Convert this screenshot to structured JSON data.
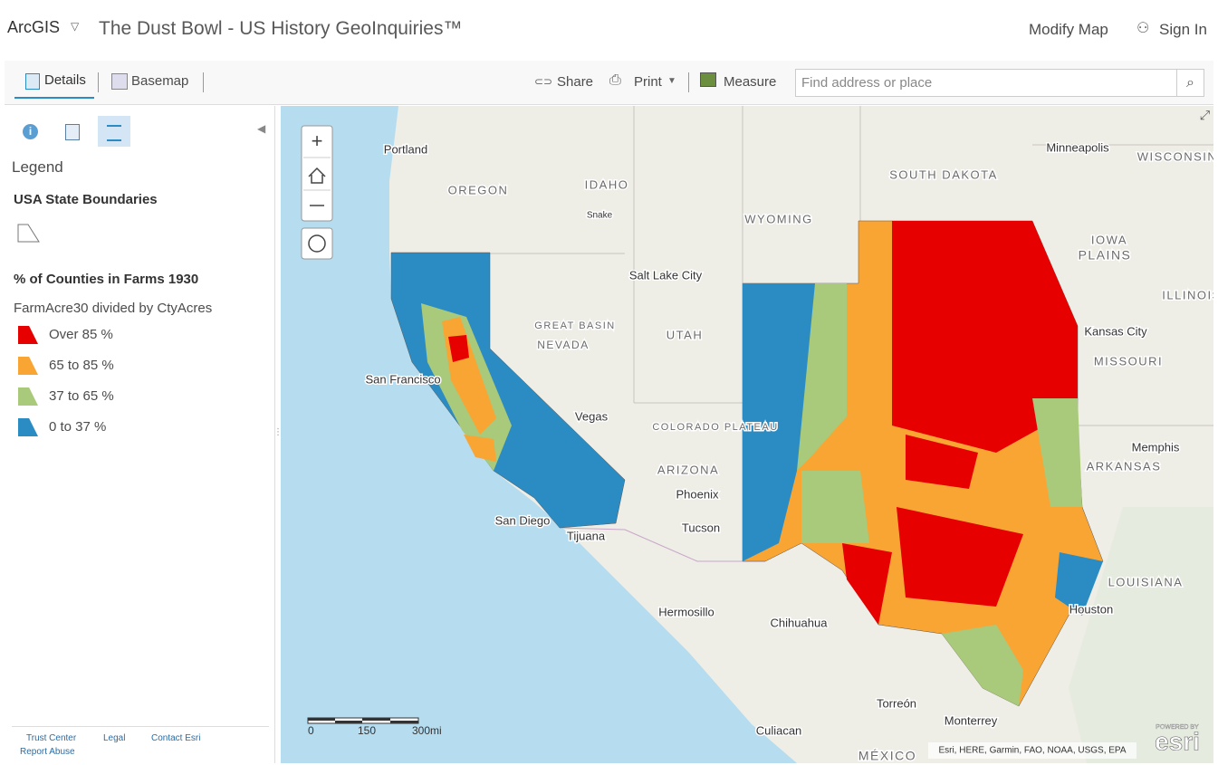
{
  "header": {
    "brand": "ArcGIS",
    "title": "The Dust Bowl - US History GeoInquiries™",
    "modify": "Modify Map",
    "sign_in": "Sign In"
  },
  "toolbar": {
    "details": "Details",
    "basemap": "Basemap",
    "share": "Share",
    "print": "Print",
    "measure": "Measure",
    "search_placeholder": "Find address or place"
  },
  "sidebar": {
    "legend_title": "Legend",
    "layers": [
      {
        "title": "USA State Boundaries"
      },
      {
        "title": "% of Counties in Farms 1930",
        "field": "FarmAcre30 divided by CtyAcres",
        "classes": [
          {
            "label": "Over 85 %",
            "color": "#e60000"
          },
          {
            "label": "65 to 85 %",
            "color": "#f9a534"
          },
          {
            "label": "37 to 65 %",
            "color": "#a9c97b"
          },
          {
            "label": "0 to 37 %",
            "color": "#2b8cc4"
          }
        ]
      }
    ],
    "footer": [
      "Trust Center",
      "Legal",
      "Contact Esri",
      "Report Abuse"
    ]
  },
  "map": {
    "labels": [
      "Portland",
      "OREGON",
      "IDAHO",
      "WYOMING",
      "SOUTH DAKOTA",
      "Minneapolis",
      "WISCONSIN",
      "IOWA",
      "PLAINS",
      "Salt Lake City",
      "GREAT BASIN",
      "NEVADA",
      "UTAH",
      "Kansas City",
      "MISSOURI",
      "ILLINOIS",
      "San Francisco",
      "Vegas",
      "COLORADO PLATEAU",
      "ARIZONA",
      "Phoenix",
      "Memphis",
      "ARKANSAS",
      "Tucson",
      "San Diego",
      "Tijuana",
      "LOUISIANA",
      "Hermosillo",
      "Chihuahua",
      "Houston",
      "Torreón",
      "Monterrey",
      "Culiacan",
      "MÉXICO",
      "Snake"
    ],
    "scale": [
      "0",
      "150",
      "300mi"
    ],
    "attribution": "Esri, HERE, Garmin, FAO, NOAA, USGS, EPA",
    "powered": "POWERED BY",
    "logo": "esri"
  }
}
